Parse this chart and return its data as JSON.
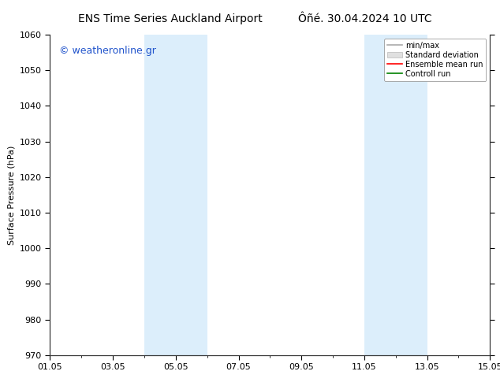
{
  "title_left": "ENS Time Series Auckland Airport",
  "title_right": "Ôñé. 30.04.2024 10 UTC",
  "ylabel": "Surface Pressure (hPa)",
  "watermark": "© weatheronline.gr",
  "ylim": [
    970,
    1060
  ],
  "yticks": [
    970,
    980,
    990,
    1000,
    1010,
    1020,
    1030,
    1040,
    1050,
    1060
  ],
  "xlim": [
    0,
    14
  ],
  "xtick_positions": [
    0,
    2,
    4,
    6,
    8,
    10,
    12,
    14
  ],
  "xtick_labels": [
    "01.05",
    "03.05",
    "05.05",
    "07.05",
    "09.05",
    "11.05",
    "13.05",
    "15.05"
  ],
  "shaded_bands": [
    {
      "x_start": 3,
      "x_end": 5,
      "color": "#dceefb"
    },
    {
      "x_start": 10,
      "x_end": 12,
      "color": "#dceefb"
    }
  ],
  "legend_entries": [
    {
      "label": "min/max",
      "color": "#aaaaaa",
      "type": "line"
    },
    {
      "label": "Standard deviation",
      "color": "#cccccc",
      "type": "band"
    },
    {
      "label": "Ensemble mean run",
      "color": "red",
      "type": "line"
    },
    {
      "label": "Controll run",
      "color": "green",
      "type": "line"
    }
  ],
  "bg_color": "#ffffff",
  "title_fontsize": 10,
  "tick_fontsize": 8,
  "ylabel_fontsize": 8,
  "watermark_color": "#2255cc",
  "watermark_fontsize": 9
}
